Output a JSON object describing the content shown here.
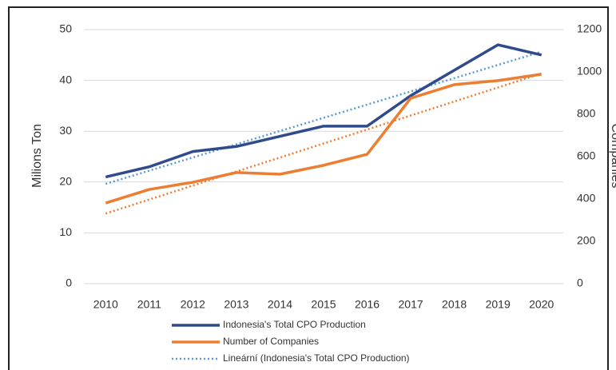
{
  "chart_data": {
    "type": "line",
    "y_label": "Milions Ton",
    "y2_label": "Companies",
    "categories": [
      "2010",
      "2011",
      "2012",
      "2013",
      "2014",
      "2015",
      "2016",
      "2017",
      "2018",
      "2019",
      "2020"
    ],
    "series": [
      {
        "name": "Indonesia's Total CPO Production",
        "color": "#2f4b8c",
        "values": [
          21,
          23,
          26,
          27,
          29,
          31,
          31,
          37,
          42,
          47,
          45
        ],
        "trendline": {
          "name": "Lineární (Indonesia's Total CPO Production)",
          "color": "#5b9bd5"
        }
      },
      {
        "name": "Number of Companies",
        "color": "#ed7d31",
        "axis": "y2",
        "values": [
          381,
          445,
          479,
          525,
          517,
          559,
          611,
          876,
          940,
          959,
          989
        ],
        "trendline": {
          "color": "#ed7d31"
        }
      }
    ],
    "ylim": [
      0,
      50
    ],
    "yticks": [
      0,
      10,
      20,
      30,
      40,
      50
    ],
    "y2lim": [
      0,
      1200
    ],
    "y2ticks": [
      0,
      200,
      400,
      600,
      800,
      1000,
      1200
    ],
    "grid": true
  }
}
